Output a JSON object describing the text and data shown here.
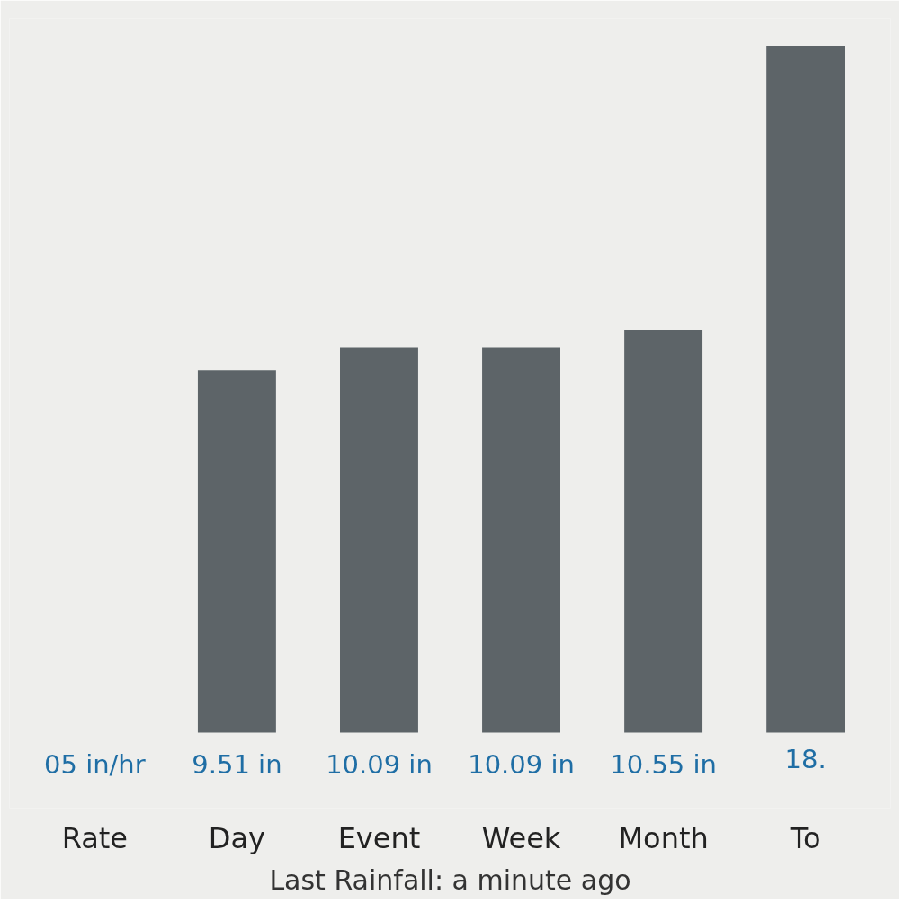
{
  "chart_data": {
    "type": "bar",
    "categories": [
      "Rate",
      "Day",
      "Event",
      "Week",
      "Month",
      "To"
    ],
    "values": [
      null,
      9.51,
      10.09,
      10.09,
      10.55,
      18
    ],
    "value_labels": [
      "05 in/hr",
      "9.51 in",
      "10.09 in",
      "10.09 in",
      "10.55 in",
      "18."
    ],
    "color": "#5d6468",
    "annotations": [
      "Last Rainfall: a minute ago"
    ]
  }
}
